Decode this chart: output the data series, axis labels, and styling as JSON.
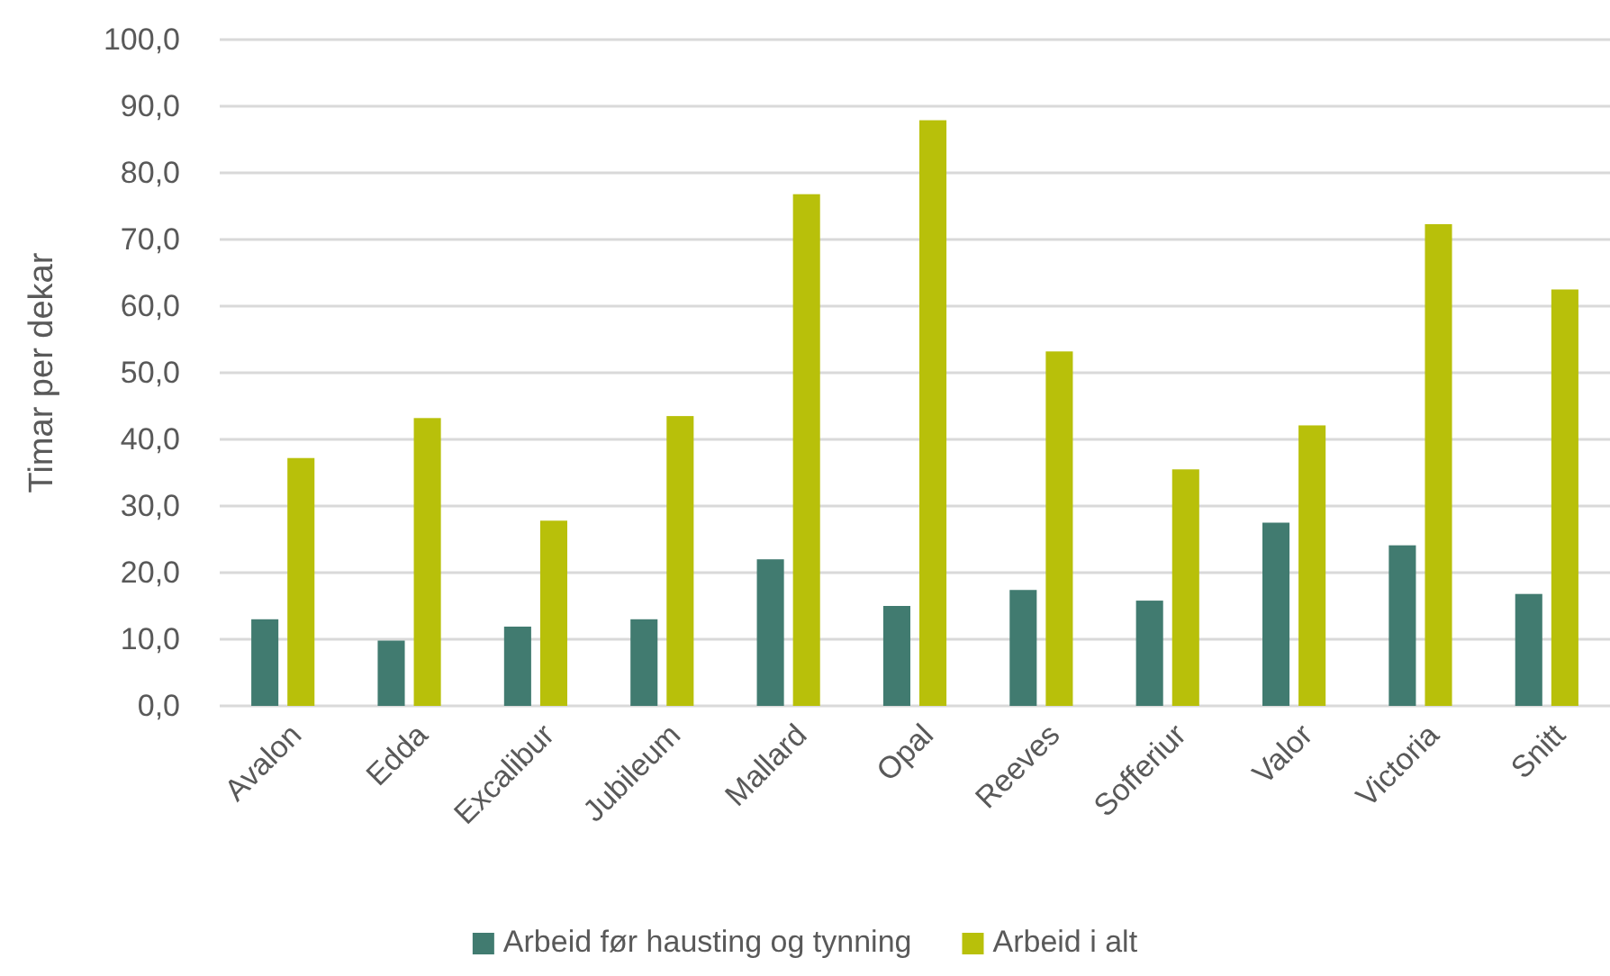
{
  "chart_data": {
    "type": "bar",
    "ylabel": "Timar per dekar",
    "categories": [
      "Avalon",
      "Edda",
      "Excalibur",
      "Jubileum",
      "Mallard",
      "Opal",
      "Reeves",
      "Sofferiur",
      "Valor",
      "Victoria",
      "Snitt"
    ],
    "series": [
      {
        "name": "Arbeid før hausting og tynning",
        "color": "#417b70",
        "values": [
          13.0,
          9.8,
          11.9,
          13.0,
          22.0,
          15.0,
          17.4,
          15.8,
          27.5,
          24.1,
          16.8
        ]
      },
      {
        "name": "Arbeid i alt",
        "color": "#b8c00a",
        "values": [
          37.2,
          43.2,
          27.8,
          43.5,
          76.8,
          87.9,
          53.2,
          35.5,
          42.1,
          72.3,
          62.5
        ]
      }
    ],
    "ylim": [
      0,
      100
    ],
    "yticks": [
      {
        "value": 0,
        "label": "0,0"
      },
      {
        "value": 10,
        "label": "10,0"
      },
      {
        "value": 20,
        "label": "20,0"
      },
      {
        "value": 30,
        "label": "30,0"
      },
      {
        "value": 40,
        "label": "40,0"
      },
      {
        "value": 50,
        "label": "50,0"
      },
      {
        "value": 60,
        "label": "60,0"
      },
      {
        "value": 70,
        "label": "70,0"
      },
      {
        "value": 80,
        "label": "80,0"
      },
      {
        "value": 90,
        "label": "90,0"
      },
      {
        "value": 100,
        "label": "100,0"
      }
    ],
    "grid": "y",
    "legend": "bottom"
  }
}
